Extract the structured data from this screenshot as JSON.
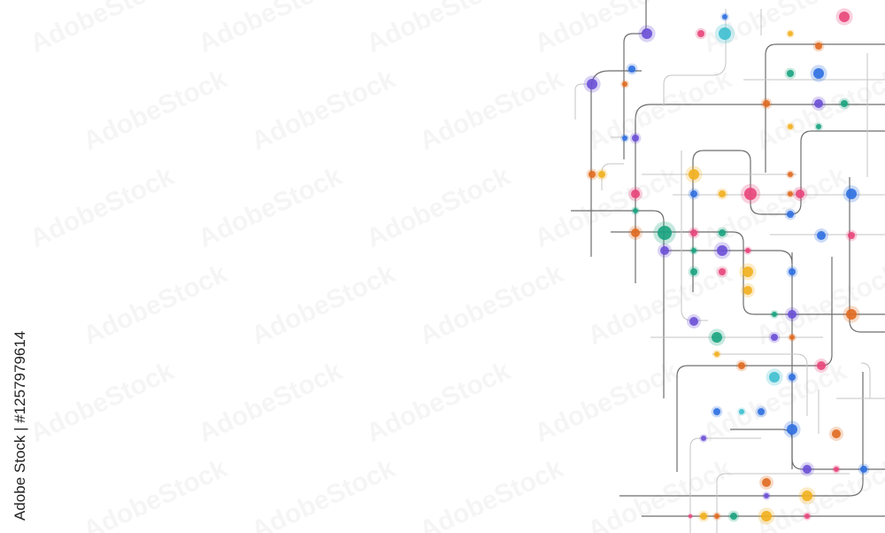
{
  "credit": "Adobe Stock | #1257979614",
  "watermark": "AdobeStock"
}
